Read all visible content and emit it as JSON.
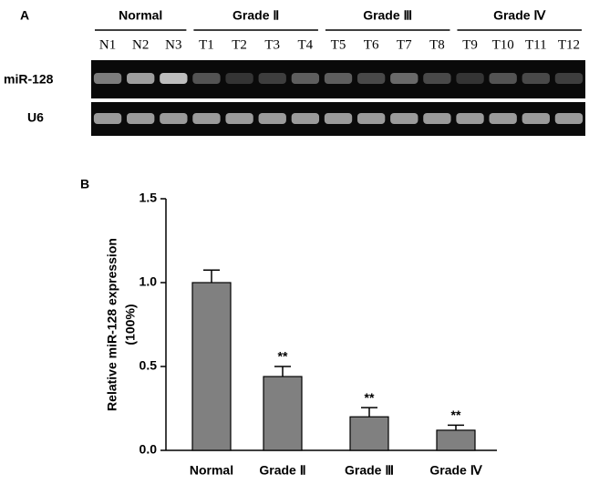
{
  "gel": {
    "panel_label": "A",
    "groups": [
      "Normal",
      "Grade Ⅱ",
      "Grade Ⅲ",
      "Grade Ⅳ"
    ],
    "lanes": [
      "N1",
      "N2",
      "N3",
      "T1",
      "T2",
      "T3",
      "T4",
      "T5",
      "T6",
      "T7",
      "T8",
      "T9",
      "T10",
      "T11",
      "T12"
    ],
    "rows": [
      "miR-128",
      "U6"
    ]
  },
  "chart_data": {
    "type": "bar",
    "panel_label": "B",
    "ylabel": [
      "Relative miR-128 expression",
      "(100%)"
    ],
    "categories": [
      "Normal",
      "Grade Ⅱ",
      "Grade Ⅲ",
      "Grade Ⅳ"
    ],
    "values": [
      1.0,
      0.44,
      0.2,
      0.12
    ],
    "errors": [
      0.075,
      0.06,
      0.055,
      0.03
    ],
    "annotations": [
      null,
      "**",
      "**",
      "**"
    ],
    "color": "#808080",
    "ylim": [
      0,
      1.5
    ],
    "yticks": [
      {
        "value": 0,
        "label": "0.0"
      },
      0.5,
      {
        "value": 1,
        "label": "1.0"
      },
      1.5
    ]
  }
}
